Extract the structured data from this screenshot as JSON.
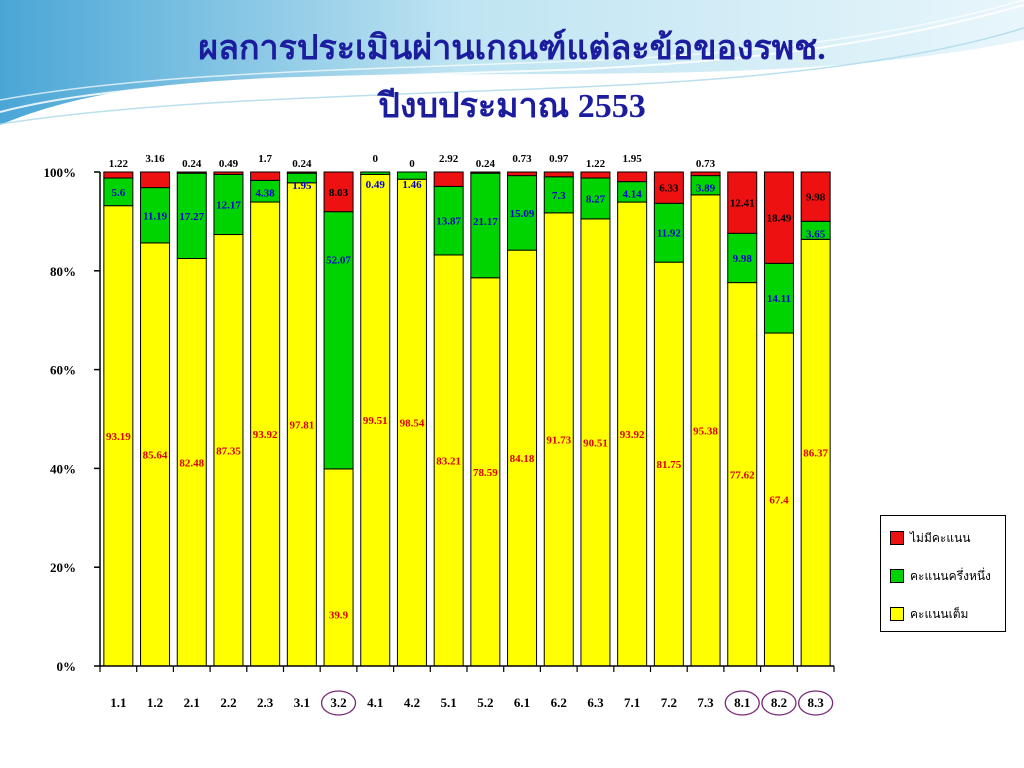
{
  "slide": {
    "title_line1": "ผลการประเมินผ่านเกณฑ์แต่ละข้อของรพช.",
    "title_line2": "ปีงบประมาณ 2553"
  },
  "colors": {
    "full": "#ffff00",
    "half": "#00d400",
    "none": "#ee1111",
    "circle": "#7a2a7a",
    "full_label": "#dd0000",
    "half_label": "#0000cc",
    "none_label": "#000000"
  },
  "chart_data": {
    "type": "bar",
    "stacked": "percent",
    "categories": [
      "1.1",
      "1.2",
      "2.1",
      "2.2",
      "2.3",
      "3.1",
      "3.2",
      "4.1",
      "4.2",
      "5.1",
      "5.2",
      "6.1",
      "6.2",
      "6.3",
      "7.1",
      "7.2",
      "7.3",
      "8.1",
      "8.2",
      "8.3"
    ],
    "circled_categories": [
      "3.2",
      "8.1",
      "8.2",
      "8.3"
    ],
    "series": [
      {
        "name": "คะแนนเต็ม",
        "key": "full",
        "values": [
          93.19,
          85.64,
          82.48,
          87.35,
          93.92,
          97.81,
          39.9,
          99.51,
          98.54,
          83.21,
          78.59,
          84.18,
          91.73,
          90.51,
          93.92,
          81.75,
          95.38,
          77.62,
          67.4,
          86.37
        ]
      },
      {
        "name": "คะแนนครึ่งหนึ่ง",
        "key": "half",
        "values": [
          5.6,
          11.19,
          17.27,
          12.17,
          4.38,
          1.95,
          52.07,
          0.49,
          1.46,
          13.87,
          21.17,
          15.09,
          7.3,
          8.27,
          4.14,
          11.92,
          3.89,
          9.98,
          14.11,
          3.65
        ]
      },
      {
        "name": "ไม่มีคะแนน",
        "key": "none",
        "values": [
          1.22,
          3.16,
          0.24,
          0.49,
          1.7,
          0.24,
          8.03,
          0,
          0,
          2.92,
          0.24,
          0.73,
          0.97,
          1.22,
          1.95,
          6.33,
          0.73,
          12.41,
          18.49,
          9.98
        ]
      }
    ],
    "none_label_display": [
      "1.22",
      "3.16",
      "0.24",
      "0.49",
      "1.7",
      "0.24",
      "8.03",
      "0",
      "0",
      "2.92",
      "0.24",
      "0.73",
      "0.97",
      "1.22",
      "1.95",
      "6.33",
      "0.73",
      "12.41",
      "18.49",
      "9.98"
    ],
    "none_label_inside": [
      false,
      false,
      false,
      false,
      false,
      false,
      true,
      false,
      false,
      false,
      false,
      false,
      false,
      false,
      false,
      true,
      false,
      true,
      true,
      true
    ],
    "ylim": [
      0,
      100
    ],
    "yticks": [
      "0%",
      "20%",
      "40%",
      "60%",
      "80%",
      "100%"
    ],
    "legend": {
      "position": "right",
      "order": [
        "none",
        "half",
        "full"
      ]
    }
  }
}
